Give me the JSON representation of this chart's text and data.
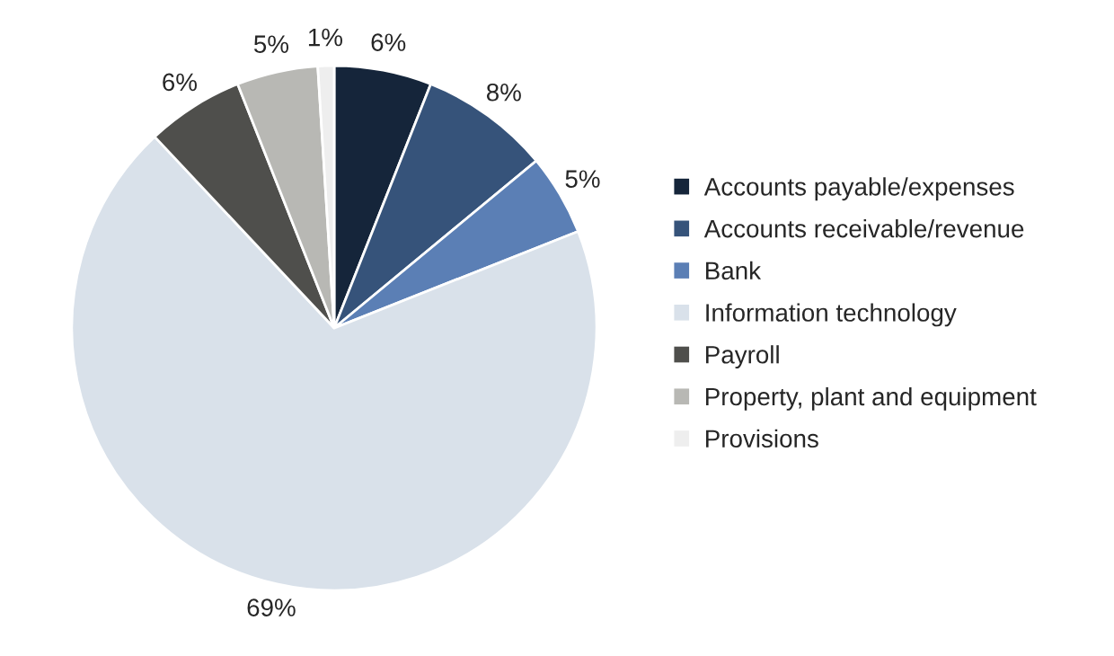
{
  "chart_data": {
    "type": "pie",
    "categories": [
      "Accounts payable/expenses",
      "Accounts receivable/revenue",
      "Bank",
      "Information technology",
      "Payroll",
      "Property, plant and equipment",
      "Provisions"
    ],
    "values": [
      6,
      8,
      5,
      69,
      6,
      5,
      1
    ],
    "colors": [
      "#15253a",
      "#36537a",
      "#5b7fb5",
      "#d9e1ea",
      "#4f4f4c",
      "#b8b8b4",
      "#eeeeee"
    ],
    "value_labels": [
      "6%",
      "8%",
      "5%",
      "69%",
      "6%",
      "5%",
      "1%"
    ],
    "legend": "right"
  }
}
